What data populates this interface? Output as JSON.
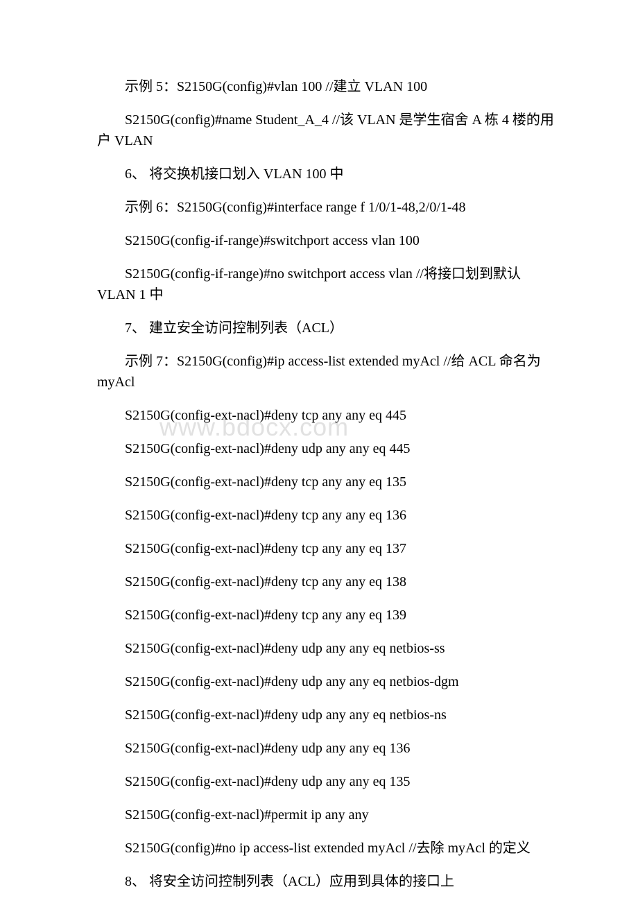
{
  "watermark": "www.bdocx.com",
  "lines": [
    {
      "text": "示例 5：S2150G(config)#vlan 100                       //建立 VLAN 100",
      "indent": true
    },
    {
      "text": "S2150G(config)#name Student_A_4     //该 VLAN 是学生宿舍 A 栋 4 楼的用户 VLAN",
      "indent": true
    },
    {
      "text": "6、 将交换机接口划入 VLAN 100 中",
      "indent": true
    },
    {
      "text": "示例 6：S2150G(config)#interface range f 1/0/1-48,2/0/1-48",
      "indent": true
    },
    {
      "text": "S2150G(config-if-range)#switchport access vlan 100",
      "indent": true
    },
    {
      "text": "S2150G(config-if-range)#no switchport access vlan  //将接口划到默认 VLAN 1 中",
      "indent": true
    },
    {
      "text": "7、 建立安全访问控制列表（ACL）",
      "indent": true
    },
    {
      "text": "示例 7：S2150G(config)#ip access-list extended myAcl            //给 ACL 命名为 myAcl",
      "indent": true
    },
    {
      "text": "S2150G(config-ext-nacl)#deny tcp any  any eq 445",
      "indent": true
    },
    {
      "text": "S2150G(config-ext-nacl)#deny udp any  any eq 445",
      "indent": true
    },
    {
      "text": "S2150G(config-ext-nacl)#deny tcp any any eq 135",
      "indent": true
    },
    {
      "text": "S2150G(config-ext-nacl)#deny tcp any  any eq 136",
      "indent": true
    },
    {
      "text": "S2150G(config-ext-nacl)#deny tcp any  any eq 137",
      "indent": true
    },
    {
      "text": "S2150G(config-ext-nacl)#deny tcp any  any eq 138",
      "indent": true
    },
    {
      "text": "S2150G(config-ext-nacl)#deny tcp any  any eq 139",
      "indent": true
    },
    {
      "text": "S2150G(config-ext-nacl)#deny udp any  any eq netbios-ss",
      "indent": true
    },
    {
      "text": "S2150G(config-ext-nacl)#deny udp any  any eq netbios-dgm",
      "indent": true
    },
    {
      "text": "S2150G(config-ext-nacl)#deny udp any  any eq netbios-ns",
      "indent": true
    },
    {
      "text": "S2150G(config-ext-nacl)#deny udp any  any eq 136",
      "indent": true
    },
    {
      "text": "S2150G(config-ext-nacl)#deny udp any  any eq 135",
      "indent": true
    },
    {
      "text": "S2150G(config-ext-nacl)#permit ip any  any",
      "indent": true
    },
    {
      "text": "S2150G(config)#no ip access-list extended myAcl             //去除 myAcl 的定义",
      "indent": true
    },
    {
      "text": "8、 将安全访问控制列表（ACL）应用到具体的接口上",
      "indent": true
    }
  ]
}
